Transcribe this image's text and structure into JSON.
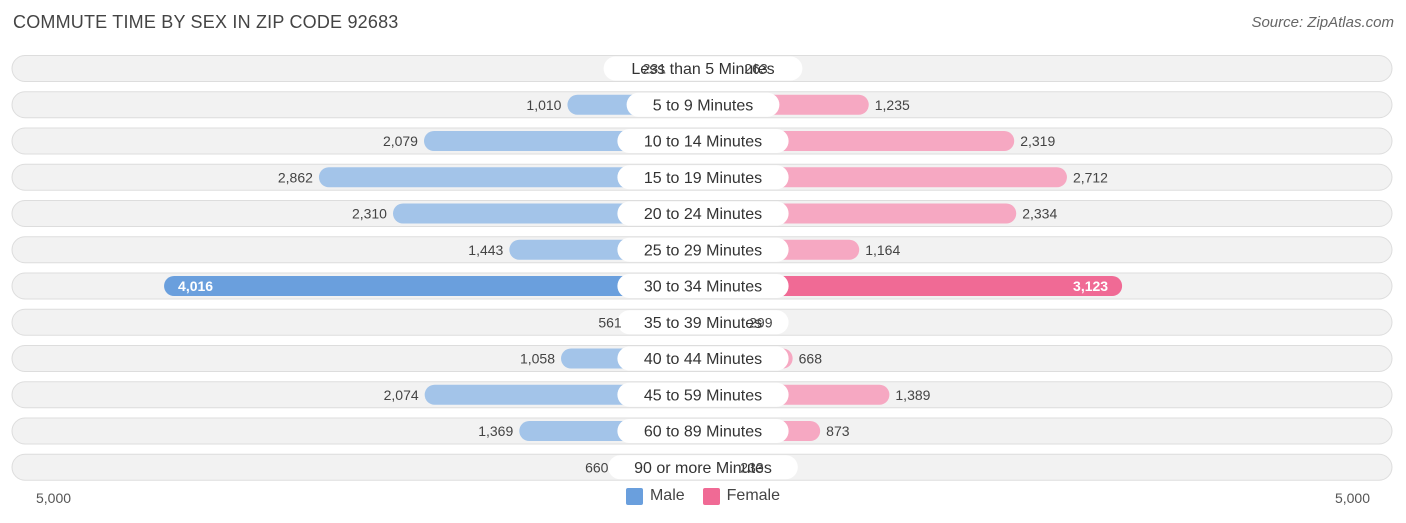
{
  "title": "COMMUTE TIME BY SEX IN ZIP CODE 92683",
  "source": "Source: ZipAtlas.com",
  "colors": {
    "male_light": "#a3c4e9",
    "male_strong": "#6a9fdd",
    "female_light": "#f6a8c2",
    "female_strong": "#f06a95",
    "row_bg": "#f2f2f2",
    "row_border": "#dddddd"
  },
  "axis": {
    "left_label": "5,000",
    "right_label": "5,000"
  },
  "legend": {
    "male_label": "Male",
    "female_label": "Female"
  },
  "chart_data": {
    "type": "bar",
    "orientation": "horizontal-diverging",
    "title": "COMMUTE TIME BY SEX IN ZIP CODE 92683",
    "categories": [
      "Less than 5 Minutes",
      "5 to 9 Minutes",
      "10 to 14 Minutes",
      "15 to 19 Minutes",
      "20 to 24 Minutes",
      "25 to 29 Minutes",
      "30 to 34 Minutes",
      "35 to 39 Minutes",
      "40 to 44 Minutes",
      "45 to 59 Minutes",
      "60 to 89 Minutes",
      "90 or more Minutes"
    ],
    "series": [
      {
        "name": "Male",
        "values": [
          231,
          1010,
          2079,
          2862,
          2310,
          1443,
          4016,
          561,
          1058,
          2074,
          1369,
          660
        ],
        "labels": [
          "231",
          "1,010",
          "2,079",
          "2,862",
          "2,310",
          "1,443",
          "4,016",
          "561",
          "1,058",
          "2,074",
          "1,369",
          "660"
        ]
      },
      {
        "name": "Female",
        "values": [
          263,
          1235,
          2319,
          2712,
          2334,
          1164,
          3123,
          299,
          668,
          1389,
          873,
          233
        ],
        "labels": [
          "263",
          "1,235",
          "2,319",
          "2,712",
          "2,334",
          "1,164",
          "3,123",
          "299",
          "668",
          "1,389",
          "873",
          "233"
        ]
      }
    ],
    "xlim": [
      -5000,
      5000
    ],
    "legend_position": "bottom-center",
    "grid": false
  }
}
